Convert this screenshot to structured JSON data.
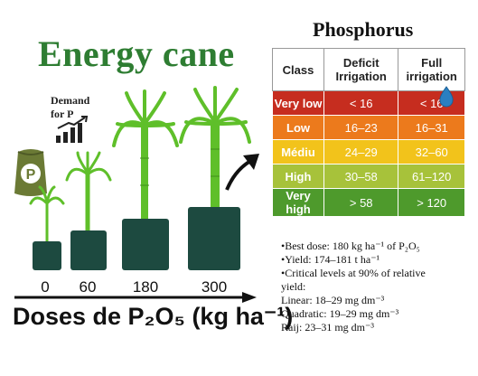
{
  "title": "Energy cane",
  "demand_label": "Demand for P",
  "fertilizer_letter": "P",
  "doses": [
    "0",
    "60",
    "180",
    "300"
  ],
  "axis_title": "Doses de P₂O₅ (kg ha⁻¹)",
  "phosphorus_title": "Phosphorus",
  "table": {
    "headers": [
      "Class",
      "Deficit Irrigation",
      "Full irrigation"
    ],
    "rows": [
      {
        "class": "Very low",
        "deficit": "< 16",
        "full": "< 16",
        "color": "#c62d1f"
      },
      {
        "class": "Low",
        "deficit": "16–23",
        "full": "16–31",
        "color": "#ec7a1c"
      },
      {
        "class": "Médiu",
        "deficit": "24–29",
        "full": "32–60",
        "color": "#f2c31b"
      },
      {
        "class": "High",
        "deficit": "30–58",
        "full": "61–120",
        "color": "#a7c23a"
      },
      {
        "class": "Very high",
        "deficit": "> 58",
        "full": "> 120",
        "color": "#4e9a2c"
      }
    ]
  },
  "notes": [
    "•Best dose: 180 kg ha⁻¹ of P₂O₅",
    "•Yield: 174–181 t ha⁻¹",
    "•Critical levels at 90% of relative",
    "yield:",
    "Linear: 18–29 mg dm⁻³",
    "Quadratic: 19–29 mg dm⁻³",
    "Raij: 23–31 mg dm⁻³"
  ],
  "colors": {
    "title_green": "#2e7d32",
    "pot": "#1d4a40",
    "leaf": "#5fbf2a",
    "bag": "#6b7a35"
  }
}
